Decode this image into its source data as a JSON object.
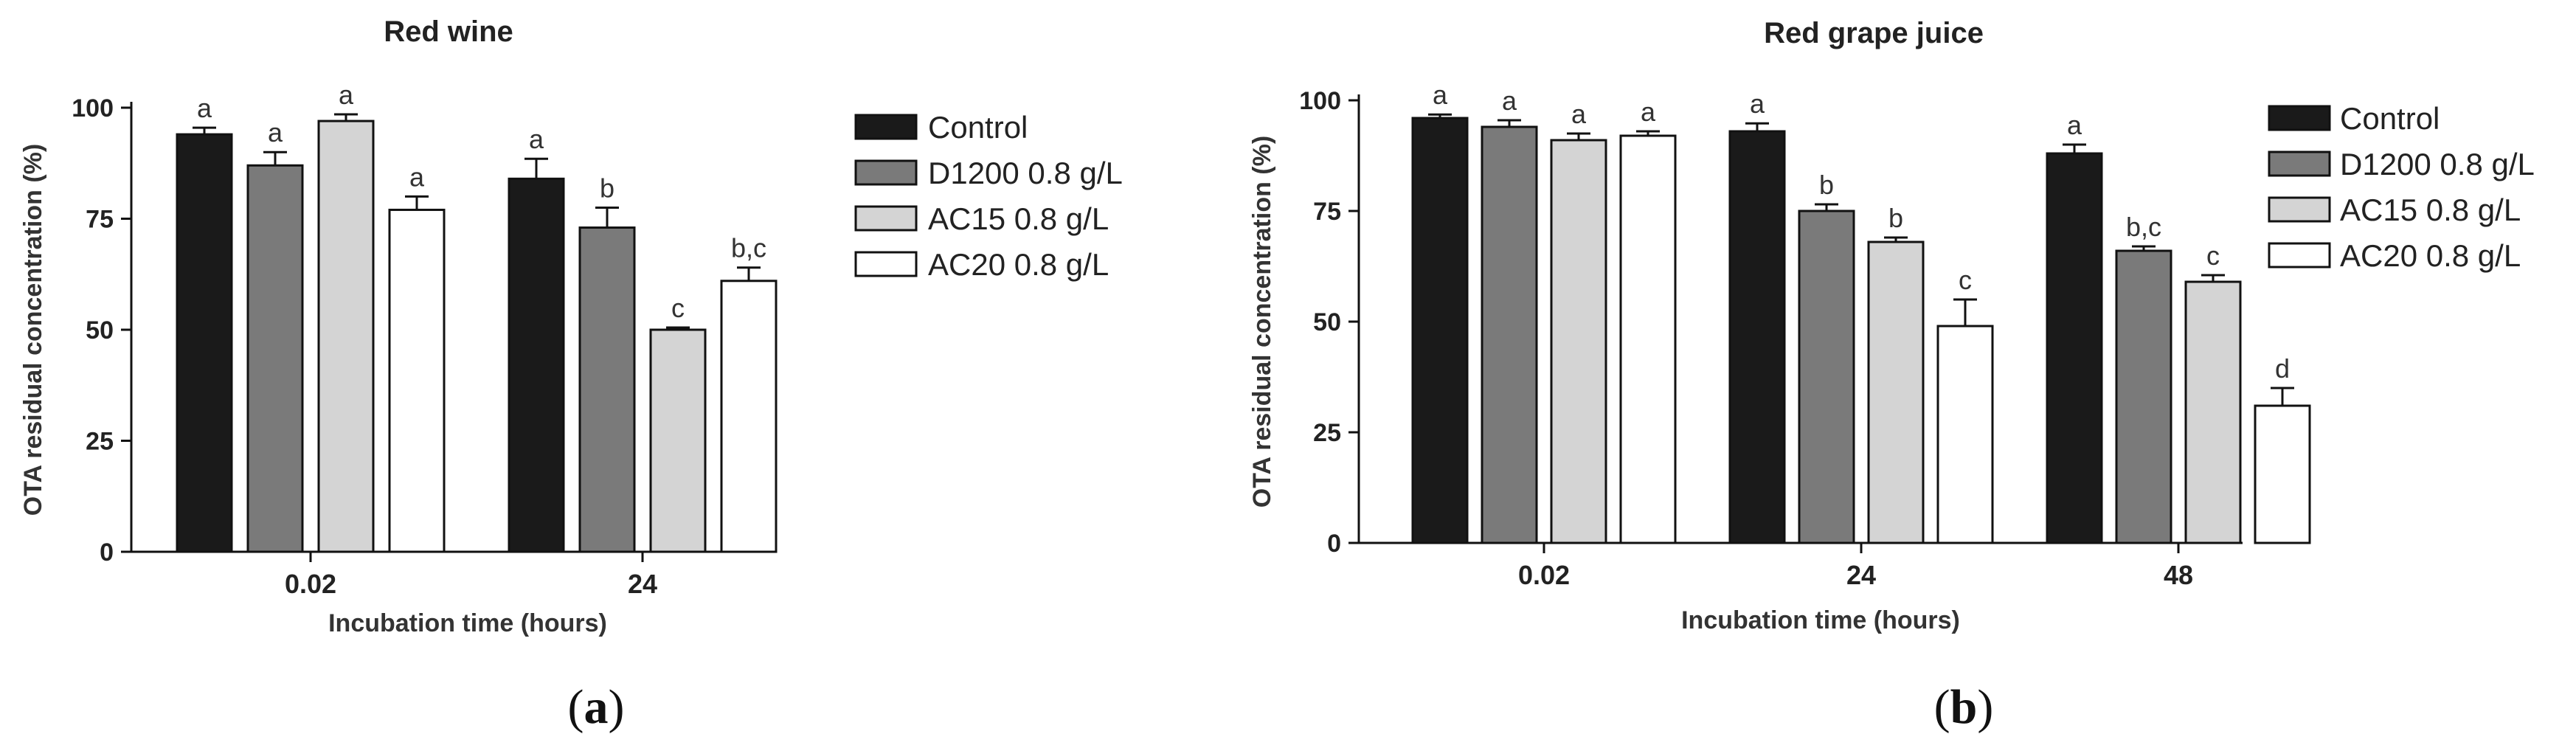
{
  "colors": {
    "control": "#1a1a1a",
    "d1200": "#7a7a7a",
    "ac15": "#d4d4d4",
    "ac20": "#ffffff",
    "stroke": "#111111"
  },
  "chart_data": [
    {
      "type": "bar",
      "panel_label": "a",
      "title": "Red wine",
      "xlabel": "Incubation time (hours)",
      "ylabel": "OTA residual concentration (%)",
      "ylim": [
        0,
        100
      ],
      "yticks": [
        "0",
        "25",
        "50",
        "75",
        "100"
      ],
      "categories": [
        "0.02",
        "24"
      ],
      "series": [
        {
          "name": "Control",
          "values": [
            94,
            84
          ],
          "errors": [
            1.5,
            4.5
          ],
          "letters": [
            "a",
            "a"
          ]
        },
        {
          "name": "D1200 0.8 g/L",
          "values": [
            87,
            73
          ],
          "errors": [
            3,
            4.5
          ],
          "letters": [
            "a",
            "b"
          ]
        },
        {
          "name": "AC15 0.8 g/L",
          "values": [
            97,
            50
          ],
          "errors": [
            1.5,
            0.5
          ],
          "letters": [
            "a",
            "c"
          ]
        },
        {
          "name": "AC20 0.8 g/L",
          "values": [
            77,
            61
          ],
          "errors": [
            3,
            3
          ],
          "letters": [
            "a",
            "b,c"
          ]
        }
      ]
    },
    {
      "type": "bar",
      "panel_label": "b",
      "title": "Red grape juice",
      "xlabel": "Incubation time (hours)",
      "ylabel": "OTA residual concentration (%)",
      "ylim": [
        0,
        100
      ],
      "yticks": [
        "0",
        "25",
        "50",
        "75",
        "100"
      ],
      "categories": [
        "0.02",
        "24",
        "48"
      ],
      "series": [
        {
          "name": "Control",
          "values": [
            96,
            93,
            88
          ],
          "errors": [
            0.8,
            1.8,
            2
          ],
          "letters": [
            "a",
            "a",
            "a"
          ]
        },
        {
          "name": "D1200 0.8 g/L",
          "values": [
            94,
            75,
            66
          ],
          "errors": [
            1.5,
            1.5,
            1
          ],
          "letters": [
            "a",
            "b",
            "b,c"
          ]
        },
        {
          "name": "AC15 0.8 g/L",
          "values": [
            91,
            68,
            59
          ],
          "errors": [
            1.5,
            1,
            1.5
          ],
          "letters": [
            "a",
            "b",
            "c"
          ]
        },
        {
          "name": "AC20 0.8 g/L",
          "values": [
            92,
            49,
            31
          ],
          "errors": [
            1,
            6,
            4
          ],
          "letters": [
            "a",
            "c",
            "d"
          ]
        }
      ]
    }
  ]
}
